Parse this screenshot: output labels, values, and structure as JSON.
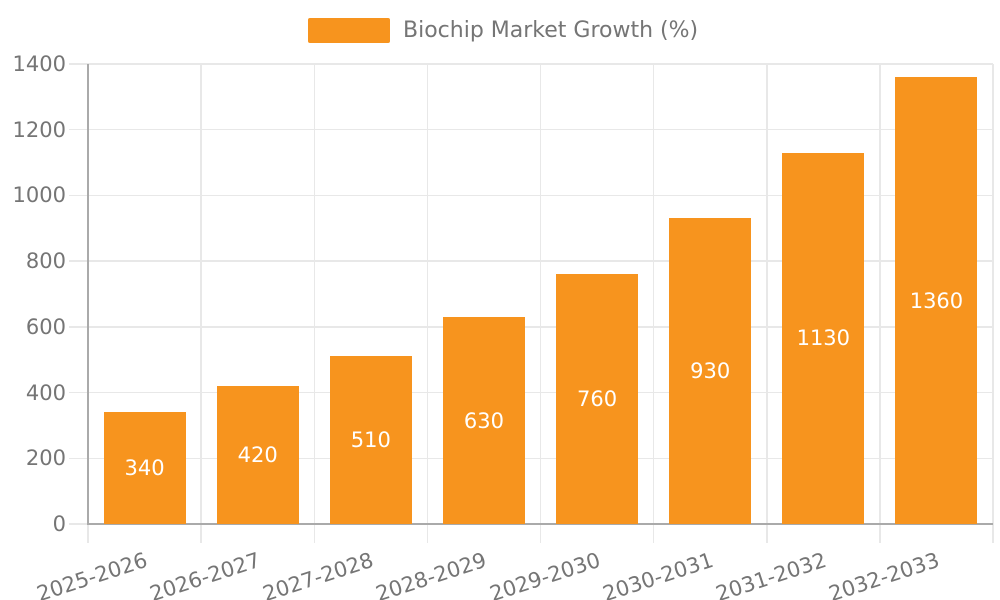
{
  "chart_data": {
    "type": "bar",
    "title": "",
    "xlabel": "",
    "ylabel": "",
    "legend_label": "Biochip Market Growth (%)",
    "legend_position": "top-center",
    "categories": [
      "2025-2026",
      "2026-2027",
      "2027-2028",
      "2028-2029",
      "2029-2030",
      "2030-2031",
      "2031-2032",
      "2032-2033"
    ],
    "values": [
      340,
      420,
      510,
      630,
      760,
      930,
      1130,
      1360
    ],
    "value_labels": [
      "340",
      "420",
      "510",
      "630",
      "760",
      "930",
      "1130",
      "1360"
    ],
    "ylim": [
      0,
      1400
    ],
    "yticks": [
      0,
      200,
      400,
      600,
      800,
      1000,
      1200,
      1400
    ],
    "grid": true,
    "x_label_rotation_deg": -18,
    "colors": {
      "bar": "#f7941e",
      "bar_value_text": "#ffffff",
      "axis_text": "#757575",
      "legend_text": "#757575",
      "axis_line": "#aaaaaa",
      "gridline": "#e8e8e8",
      "background": "#ffffff"
    }
  }
}
